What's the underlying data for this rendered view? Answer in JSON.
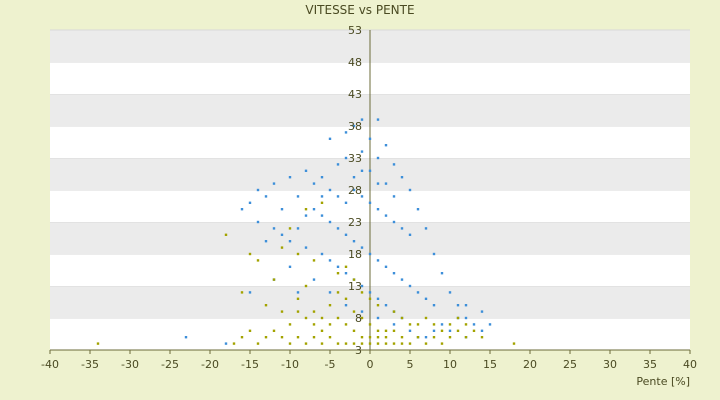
{
  "chart_data": {
    "type": "scatter",
    "title": "VITESSE vs PENTE",
    "xlabel": "Pente [%]",
    "ylabel": "",
    "xlim": [
      -40,
      40
    ],
    "ylim": [
      3,
      53
    ],
    "x_ticks": [
      -40,
      -35,
      -30,
      -25,
      -20,
      -15,
      -10,
      -5,
      0,
      5,
      10,
      15,
      20,
      25,
      30,
      35,
      40
    ],
    "y_ticks": [
      3,
      8,
      13,
      18,
      23,
      28,
      33,
      38,
      43,
      48,
      53
    ],
    "x_tick_labels": [
      "-40",
      "-35",
      "-30",
      "-25",
      "-20",
      "-15",
      "-10",
      "-5",
      "0",
      "5",
      "10",
      "15",
      "20",
      "25",
      "30",
      "35",
      "40"
    ],
    "y_tick_labels": [
      "3",
      "8",
      "13",
      "18",
      "23",
      "28",
      "33",
      "38",
      "43",
      "48",
      "53"
    ],
    "grid": "horizontal alternating bands",
    "legend": "none",
    "series": [
      {
        "color": "#3d8fd9",
        "points": [
          [
            -2,
            38
          ],
          [
            -1,
            39
          ],
          [
            1,
            39
          ],
          [
            -3,
            37
          ],
          [
            0,
            36
          ],
          [
            2,
            35
          ],
          [
            -5,
            36
          ],
          [
            -8,
            31
          ],
          [
            -10,
            30
          ],
          [
            -12,
            29
          ],
          [
            -14,
            28
          ],
          [
            -13,
            27
          ],
          [
            -9,
            27
          ],
          [
            -7,
            29
          ],
          [
            -6,
            30
          ],
          [
            -4,
            32
          ],
          [
            -3,
            33
          ],
          [
            -1,
            34
          ],
          [
            1,
            33
          ],
          [
            3,
            32
          ],
          [
            4,
            30
          ],
          [
            5,
            28
          ],
          [
            6,
            25
          ],
          [
            7,
            22
          ],
          [
            8,
            18
          ],
          [
            9,
            15
          ],
          [
            10,
            12
          ],
          [
            11,
            10
          ],
          [
            12,
            8
          ],
          [
            13,
            7
          ],
          [
            14,
            6
          ],
          [
            15,
            7
          ],
          [
            14,
            9
          ],
          [
            12,
            10
          ],
          [
            11,
            8
          ],
          [
            9,
            7
          ],
          [
            8,
            6
          ],
          [
            7,
            5
          ],
          [
            6,
            5
          ],
          [
            5,
            6
          ],
          [
            -15,
            26
          ],
          [
            -16,
            25
          ],
          [
            -14,
            23
          ],
          [
            -12,
            22
          ],
          [
            -11,
            21
          ],
          [
            -10,
            20
          ],
          [
            -8,
            19
          ],
          [
            -6,
            18
          ],
          [
            -5,
            17
          ],
          [
            -4,
            16
          ],
          [
            -3,
            15
          ],
          [
            -2,
            14
          ],
          [
            -1,
            13
          ],
          [
            0,
            12
          ],
          [
            1,
            11
          ],
          [
            2,
            10
          ],
          [
            3,
            9
          ],
          [
            4,
            8
          ],
          [
            -23,
            5
          ],
          [
            -18,
            4
          ],
          [
            -7,
            25
          ],
          [
            -6,
            24
          ],
          [
            -5,
            23
          ],
          [
            -4,
            22
          ],
          [
            -3,
            21
          ],
          [
            -2,
            20
          ],
          [
            -1,
            19
          ],
          [
            0,
            18
          ],
          [
            1,
            17
          ],
          [
            2,
            16
          ],
          [
            3,
            15
          ],
          [
            4,
            14
          ],
          [
            5,
            13
          ],
          [
            6,
            12
          ],
          [
            7,
            11
          ],
          [
            8,
            10
          ],
          [
            -2,
            28
          ],
          [
            -1,
            27
          ],
          [
            0,
            26
          ],
          [
            1,
            25
          ],
          [
            2,
            24
          ],
          [
            3,
            23
          ],
          [
            4,
            22
          ],
          [
            5,
            21
          ],
          [
            -3,
            26
          ],
          [
            -4,
            27
          ],
          [
            -5,
            28
          ],
          [
            -6,
            27
          ],
          [
            -2,
            30
          ],
          [
            0,
            31
          ],
          [
            2,
            29
          ],
          [
            3,
            27
          ],
          [
            1,
            29
          ],
          [
            -1,
            31
          ],
          [
            -8,
            24
          ],
          [
            -9,
            22
          ],
          [
            -11,
            25
          ],
          [
            -13,
            20
          ],
          [
            -10,
            16
          ],
          [
            -15,
            12
          ],
          [
            -12,
            14
          ],
          [
            -9,
            12
          ],
          [
            -7,
            14
          ],
          [
            -5,
            12
          ],
          [
            -3,
            10
          ],
          [
            -1,
            9
          ],
          [
            1,
            8
          ],
          [
            3,
            7
          ],
          [
            10,
            6
          ],
          [
            12,
            5
          ]
        ]
      },
      {
        "color": "#a3a300",
        "points": [
          [
            -34,
            4
          ],
          [
            -18,
            21
          ],
          [
            -15,
            18
          ],
          [
            -14,
            17
          ],
          [
            -16,
            12
          ],
          [
            -13,
            10
          ],
          [
            -12,
            14
          ],
          [
            -11,
            9
          ],
          [
            -10,
            7
          ],
          [
            -9,
            11
          ],
          [
            -8,
            13
          ],
          [
            -7,
            9
          ],
          [
            -6,
            8
          ],
          [
            -5,
            10
          ],
          [
            -4,
            12
          ],
          [
            -3,
            11
          ],
          [
            -2,
            9
          ],
          [
            -1,
            8
          ],
          [
            0,
            7
          ],
          [
            1,
            6
          ],
          [
            2,
            5
          ],
          [
            3,
            6
          ],
          [
            4,
            5
          ],
          [
            5,
            4
          ],
          [
            6,
            5
          ],
          [
            7,
            4
          ],
          [
            8,
            5
          ],
          [
            9,
            4
          ],
          [
            10,
            5
          ],
          [
            11,
            6
          ],
          [
            12,
            5
          ],
          [
            -3,
            4
          ],
          [
            -2,
            4
          ],
          [
            -1,
            4
          ],
          [
            0,
            4
          ],
          [
            1,
            4
          ],
          [
            2,
            4
          ],
          [
            3,
            4
          ],
          [
            4,
            4
          ],
          [
            -4,
            4
          ],
          [
            -5,
            5
          ],
          [
            -6,
            4
          ],
          [
            -7,
            5
          ],
          [
            -8,
            4
          ],
          [
            -9,
            5
          ],
          [
            -10,
            4
          ],
          [
            -11,
            5
          ],
          [
            -12,
            6
          ],
          [
            -13,
            5
          ],
          [
            -14,
            4
          ],
          [
            18,
            4
          ],
          [
            -17,
            4
          ],
          [
            -16,
            5
          ],
          [
            -15,
            6
          ],
          [
            -4,
            15
          ],
          [
            -3,
            16
          ],
          [
            -2,
            14
          ],
          [
            -1,
            12
          ],
          [
            0,
            11
          ],
          [
            1,
            10
          ],
          [
            -6,
            26
          ],
          [
            -8,
            25
          ],
          [
            -10,
            22
          ],
          [
            -11,
            19
          ],
          [
            -9,
            18
          ],
          [
            -7,
            17
          ],
          [
            3,
            9
          ],
          [
            4,
            8
          ],
          [
            5,
            7
          ],
          [
            6,
            7
          ],
          [
            7,
            8
          ],
          [
            8,
            7
          ],
          [
            9,
            6
          ],
          [
            10,
            7
          ],
          [
            11,
            8
          ],
          [
            12,
            7
          ],
          [
            13,
            6
          ],
          [
            14,
            5
          ],
          [
            -2,
            6
          ],
          [
            -1,
            5
          ],
          [
            0,
            5
          ],
          [
            1,
            5
          ],
          [
            2,
            6
          ],
          [
            -3,
            7
          ],
          [
            -4,
            8
          ],
          [
            -5,
            7
          ],
          [
            -6,
            6
          ],
          [
            -7,
            7
          ],
          [
            -8,
            8
          ],
          [
            -9,
            9
          ]
        ]
      }
    ]
  }
}
